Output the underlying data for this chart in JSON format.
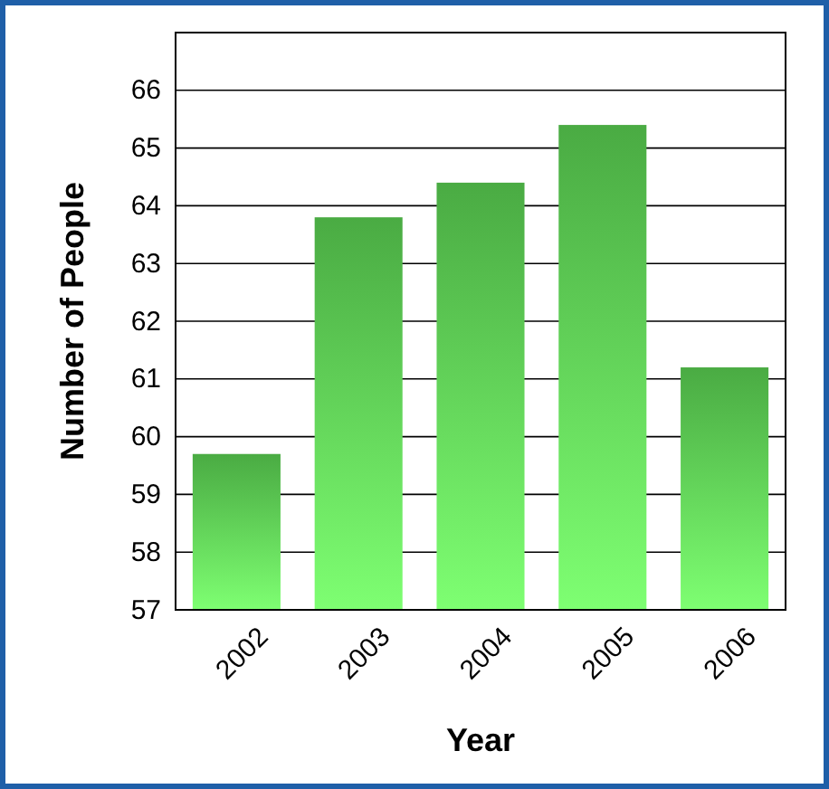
{
  "chart_data": {
    "type": "bar",
    "xlabel": "Year",
    "ylabel": "Number of People",
    "categories": [
      "2002",
      "2003",
      "2004",
      "2005",
      "2006"
    ],
    "values": [
      59.7,
      63.8,
      64.4,
      65.4,
      61.2
    ],
    "color": "#4fb848",
    "ylim": [
      57,
      67
    ],
    "yticks": [
      57,
      58,
      59,
      60,
      61,
      62,
      63,
      64,
      65,
      66
    ],
    "grid": "y"
  }
}
